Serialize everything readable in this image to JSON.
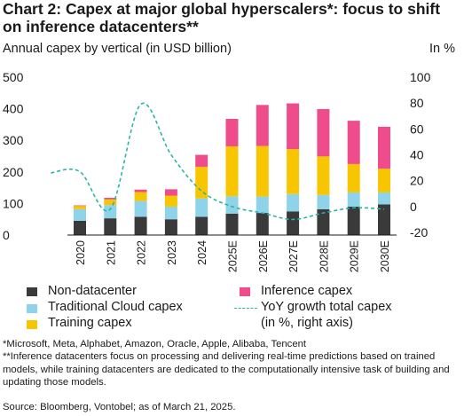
{
  "title": "Chart 2: Capex at major global hyperscalers*: focus to shift on inference datacenters**",
  "subtitle": "Annual capex by vertical (in USD billion)",
  "right_unit": "In %",
  "footnotes": {
    "note1": "*Microsoft, Meta, Alphabet, Amazon, Oracle, Apple, Alibaba, Tencent",
    "note2": "**Inference datacenters focus on processing and delivering real-time predictions based on trained models, while training datacenters are dedicated to the computationally intensive task of building and updating those models.",
    "source": "Source: Bloomberg, Vontobel; as of March 21, 2025."
  },
  "colors": {
    "non_datacenter": "#3a3a3a",
    "traditional_cloud": "#8fd3ea",
    "training": "#f7c600",
    "inference": "#ee4c8b",
    "yoy": "#2ab5a5"
  },
  "chart_data": {
    "type": "bar",
    "stacked": true,
    "categories": [
      "2020",
      "2021",
      "2022",
      "2023",
      "2024",
      "2025E",
      "2026E",
      "2027E",
      "2028E",
      "2029E",
      "2030E"
    ],
    "series": [
      {
        "name": "Non-datacenter",
        "values": [
          45,
          53,
          58,
          50,
          58,
          68,
          70,
          75,
          82,
          90,
          97
        ]
      },
      {
        "name": "Traditional Cloud capex",
        "values": [
          37,
          42,
          50,
          40,
          58,
          55,
          52,
          55,
          45,
          45,
          38
        ]
      },
      {
        "name": "Training capex",
        "values": [
          10,
          18,
          28,
          35,
          100,
          158,
          160,
          142,
          122,
          90,
          75
        ]
      },
      {
        "name": "Inference capex",
        "values": [
          2,
          5,
          8,
          20,
          38,
          87,
          130,
          145,
          150,
          137,
          133
        ]
      }
    ],
    "line_series": {
      "name": "YoY growth total capex\n(in %, right axis)",
      "axis": "right",
      "x": [
        "2019.5",
        "2020",
        "2021",
        "2022",
        "2023",
        "2024",
        "2025E",
        "2026E",
        "2027E",
        "2028E",
        "2029E",
        "2030E"
      ],
      "values": [
        26,
        27,
        -2,
        79,
        40,
        12,
        0,
        -5,
        -10,
        -5,
        -1,
        -2
      ]
    },
    "y_left": {
      "min": 0,
      "max": 500,
      "ticks": [
        0,
        100,
        200,
        300,
        400,
        500
      ]
    },
    "y_right": {
      "min": -20,
      "max": 100,
      "ticks": [
        -20,
        0,
        20,
        40,
        60,
        80,
        100
      ]
    },
    "legend": [
      {
        "key": "non_datacenter",
        "label": "Non-datacenter",
        "kind": "bar"
      },
      {
        "key": "inference",
        "label": "Inference capex",
        "kind": "bar"
      },
      {
        "key": "traditional_cloud",
        "label": "Traditional Cloud capex",
        "kind": "bar"
      },
      {
        "key": "yoy",
        "label": "YoY growth total capex\n(in %, right axis)",
        "kind": "line"
      },
      {
        "key": "training",
        "label": "Training capex",
        "kind": "bar"
      }
    ],
    "legend_position": "bottom",
    "grid": false
  }
}
